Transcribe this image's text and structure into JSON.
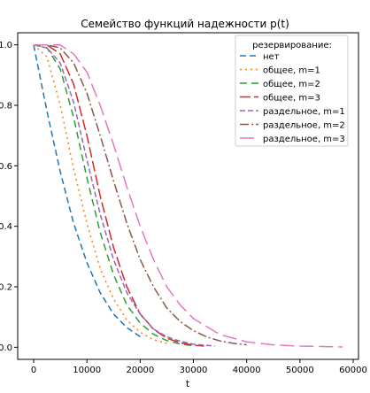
{
  "chart_data": {
    "type": "line",
    "title": "Семейство функций надежности p(t)",
    "xlabel": "t",
    "ylabel": "",
    "xlim": [
      -3000,
      61000
    ],
    "ylim": [
      -0.04,
      1.04
    ],
    "xticks": [
      0,
      10000,
      20000,
      30000,
      40000,
      50000,
      60000
    ],
    "xtick_labels": [
      "0",
      "10000",
      "20000",
      "30000",
      "40000",
      "50000",
      "60000"
    ],
    "yticks": [
      0.0,
      0.2,
      0.4,
      0.6,
      0.8,
      1.0
    ],
    "ytick_labels": [
      "0.0",
      "0.2",
      "0.4",
      "0.6",
      "0.8",
      "1.0"
    ],
    "grid": false,
    "legend": {
      "title": "резервирование:",
      "position": "top-right"
    },
    "series": [
      {
        "name": "нет",
        "color": "#1f77b4",
        "dash": "7,4",
        "x": [
          0,
          2500,
          5000,
          7500,
          10000,
          12500,
          15000,
          17500,
          20000
        ],
        "y": [
          1.0,
          0.78,
          0.58,
          0.41,
          0.28,
          0.18,
          0.11,
          0.065,
          0.035
        ]
      },
      {
        "name": "общее, m=1",
        "color": "#ff7f0e",
        "dash": "2,4",
        "x": [
          0,
          2500,
          5000,
          7500,
          10000,
          12500,
          15000,
          17500,
          20000,
          22500,
          25000
        ],
        "y": [
          1.0,
          0.96,
          0.8,
          0.59,
          0.41,
          0.26,
          0.16,
          0.09,
          0.05,
          0.025,
          0.013
        ]
      },
      {
        "name": "общее, m=2",
        "color": "#2ca02c",
        "dash": "8,5",
        "x": [
          0,
          2500,
          5000,
          7500,
          10000,
          12500,
          15000,
          17500,
          20000,
          22500,
          25000,
          27500,
          30000
        ],
        "y": [
          1.0,
          0.99,
          0.92,
          0.76,
          0.56,
          0.38,
          0.24,
          0.14,
          0.08,
          0.043,
          0.022,
          0.011,
          0.005
        ]
      },
      {
        "name": "общее, m=3",
        "color": "#d62728",
        "dash": "12,4",
        "x": [
          0,
          2500,
          5000,
          7500,
          10000,
          12500,
          15000,
          17500,
          20000,
          22500,
          25000,
          27500,
          30000,
          32000
        ],
        "y": [
          1.0,
          1.0,
          0.97,
          0.87,
          0.7,
          0.5,
          0.33,
          0.2,
          0.11,
          0.06,
          0.03,
          0.015,
          0.007,
          0.004
        ]
      },
      {
        "name": "раздельное, m=1",
        "color": "#9467bd",
        "dash": "6,3",
        "x": [
          0,
          2500,
          5000,
          7500,
          10000,
          12500,
          15000,
          17500,
          20000,
          22500,
          25000,
          27500,
          30000,
          34000
        ],
        "y": [
          1.0,
          0.99,
          0.94,
          0.81,
          0.62,
          0.44,
          0.29,
          0.18,
          0.11,
          0.06,
          0.035,
          0.02,
          0.01,
          0.004
        ]
      },
      {
        "name": "раздельное, m=2",
        "color": "#8c564b",
        "dash": "10,3,2,3",
        "x": [
          0,
          2500,
          5000,
          7500,
          10000,
          12500,
          15000,
          17500,
          20000,
          22500,
          25000,
          27500,
          30000,
          32500,
          35000,
          37500,
          40000
        ],
        "y": [
          1.0,
          1.0,
          0.99,
          0.94,
          0.84,
          0.7,
          0.55,
          0.41,
          0.29,
          0.2,
          0.13,
          0.085,
          0.055,
          0.034,
          0.021,
          0.013,
          0.008
        ]
      },
      {
        "name": "раздельное, m=3",
        "color": "#e377c2",
        "dash": "16,6",
        "x": [
          0,
          2500,
          5000,
          7500,
          10000,
          12500,
          15000,
          17500,
          20000,
          22500,
          25000,
          27500,
          30000,
          35000,
          40000,
          45000,
          50000,
          55000,
          58000
        ],
        "y": [
          1.0,
          1.0,
          1.0,
          0.97,
          0.91,
          0.8,
          0.67,
          0.53,
          0.4,
          0.29,
          0.2,
          0.14,
          0.095,
          0.042,
          0.018,
          0.008,
          0.004,
          0.002,
          0.001
        ]
      }
    ]
  }
}
